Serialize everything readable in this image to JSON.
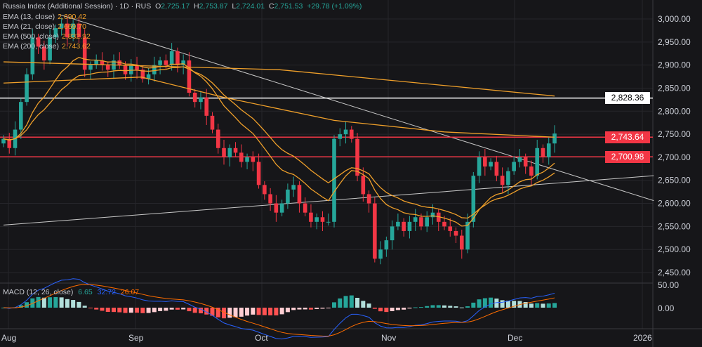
{
  "header": {
    "symbol": "Russia Index (Additional Session) · 1D · RUS",
    "o_label": "O",
    "o": "2,725.17",
    "h_label": "H",
    "h": "2,753.87",
    "l_label": "L",
    "l": "2,724.01",
    "c_label": "C",
    "c": "2,751.53",
    "change": "+29.78 (+1.09%)"
  },
  "indicators": [
    {
      "label": "EMA (13, close)",
      "value": "2,690.42"
    },
    {
      "label": "EMA (21, close)",
      "value": "2,669.70"
    },
    {
      "label": "EMA (500, close)",
      "value": "2,832.92"
    },
    {
      "label": "EMA (200, close)",
      "value": "2,743.62"
    }
  ],
  "macd": {
    "label": "MACD (12, 26, close)",
    "hist": "6.65",
    "macd": "32.72",
    "signal": "26.07",
    "axis": [
      "50.00",
      "0.00"
    ]
  },
  "price_tags": [
    {
      "value": "2,828.36",
      "price": 2828.36,
      "color": "#ffffff",
      "text_color": "#000000"
    },
    {
      "value": "2,743.64",
      "price": 2743.64,
      "color": "#f23645",
      "text_color": "#ffffff"
    },
    {
      "value": "2,700.98",
      "price": 2700.98,
      "color": "#f23645",
      "text_color": "#ffffff"
    }
  ],
  "colors": {
    "up": "#26a69a",
    "down": "#f23645",
    "ema": "#f0a02a",
    "macd": "#2962ff",
    "signal": "#ff6d00"
  },
  "chart_data": {
    "type": "candlestick",
    "title": "Russia Index (Additional Session) · 1D",
    "y_ticks": [
      "3,000.00",
      "2,950.00",
      "2,900.00",
      "2,850.00",
      "2,800.00",
      "2,750.00",
      "2,700.00",
      "2,650.00",
      "2,600.00",
      "2,550.00",
      "2,500.00",
      "2,450.00"
    ],
    "ylim": [
      2420,
      3045
    ],
    "x_ticks": [
      "Aug",
      "Sep",
      "Oct",
      "Nov",
      "Dec",
      "2026"
    ],
    "closes": [
      2740,
      2720,
      2760,
      2820,
      2880,
      2960,
      2940,
      2910,
      2960,
      2980,
      2990,
      2960,
      2990,
      2960,
      2890,
      2900,
      2910,
      2900,
      2890,
      2910,
      2900,
      2880,
      2900,
      2890,
      2870,
      2880,
      2900,
      2910,
      2900,
      2930,
      2900,
      2910,
      2840,
      2820,
      2830,
      2790,
      2760,
      2720,
      2700,
      2720,
      2710,
      2690,
      2700,
      2690,
      2640,
      2620,
      2600,
      2580,
      2600,
      2630,
      2640,
      2600,
      2580,
      2560,
      2570,
      2560,
      2560,
      2740,
      2750,
      2760,
      2740,
      2660,
      2620,
      2600,
      2480,
      2500,
      2520,
      2550,
      2560,
      2540,
      2560,
      2570,
      2550,
      2570,
      2580,
      2560,
      2550,
      2540,
      2530,
      2500,
      2560,
      2660,
      2700,
      2680,
      2690,
      2660,
      2640,
      2670,
      2690,
      2700,
      2680,
      2660,
      2720,
      2700,
      2730,
      2751.53
    ],
    "ema500": [
      [
        0,
        2907
      ],
      [
        0.5,
        2890
      ],
      [
        1,
        2832.92
      ]
    ],
    "ema200": [
      [
        0,
        2861
      ],
      [
        0.25,
        2874
      ],
      [
        0.4,
        2830
      ],
      [
        0.6,
        2780
      ],
      [
        0.8,
        2755
      ],
      [
        1,
        2743.62
      ]
    ],
    "trendlines": [
      {
        "from": [
          0.1,
          3010
        ],
        "to": [
          1.18,
          2606
        ]
      },
      {
        "from": [
          0,
          2553
        ],
        "to": [
          1.18,
          2660
        ]
      }
    ]
  }
}
